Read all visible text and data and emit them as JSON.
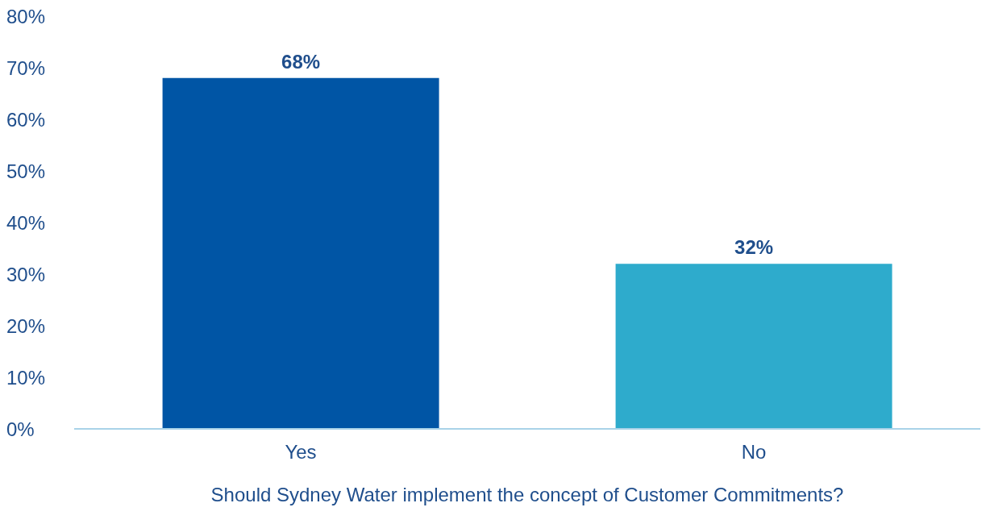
{
  "chart_data": {
    "type": "bar",
    "xlabel": "Should Sydney Water implement the concept of Customer Commitments?",
    "categories": [
      "Yes",
      "No"
    ],
    "values": [
      68,
      32
    ],
    "colors": [
      "#0055a5",
      "#2eabcc"
    ],
    "value_labels": [
      "68%",
      "32%"
    ],
    "ylim": [
      0,
      80
    ],
    "yticks": [
      {
        "value": 0,
        "label": "0%"
      },
      {
        "value": 10,
        "label": "10%"
      },
      {
        "value": 20,
        "label": "20%"
      },
      {
        "value": 30,
        "label": "30%"
      },
      {
        "value": 40,
        "label": "40%"
      },
      {
        "value": 50,
        "label": "50%"
      },
      {
        "value": 60,
        "label": "60%"
      },
      {
        "value": 70,
        "label": "70%"
      },
      {
        "value": 80,
        "label": "80%"
      }
    ],
    "grid": false,
    "legend": false
  }
}
